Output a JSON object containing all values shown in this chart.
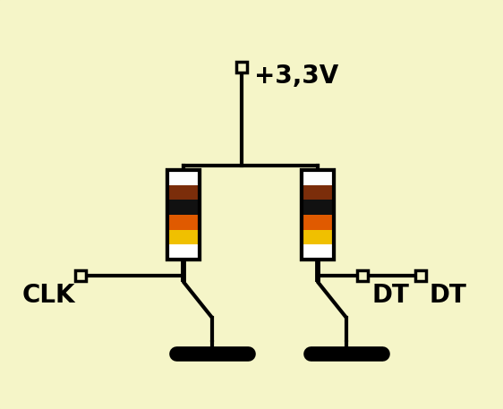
{
  "bg_color": "#f5f5c8",
  "line_color": "#000000",
  "line_width": 3.0,
  "resistor_colors": [
    "#ffffff",
    "#7b2d0a",
    "#111111",
    "#e05a00",
    "#f0c000",
    "#ffffff"
  ],
  "vcc_label": "+3,3V",
  "clk_label": "CLK",
  "dt_label1": "DT",
  "dt_label2": "DT",
  "font_size": 20
}
